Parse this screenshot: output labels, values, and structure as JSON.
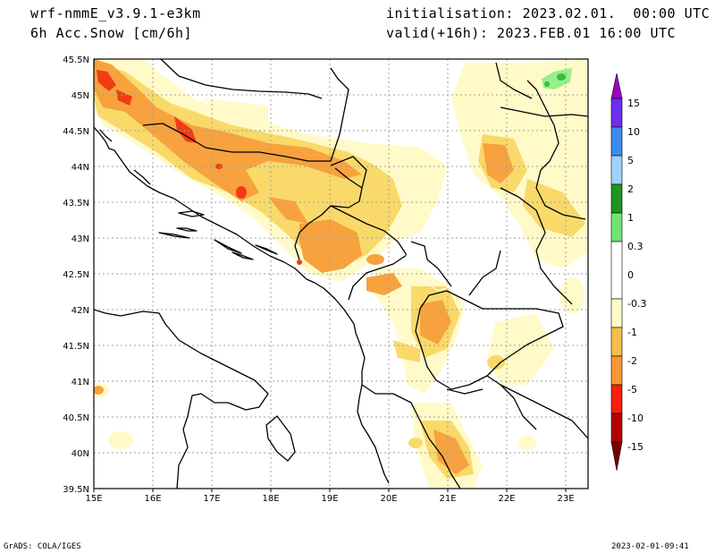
{
  "header": {
    "model": "wrf-nmmE_v3.9.1-e3km",
    "field": "6h Acc.Snow [cm/6h]",
    "init": "initialisation: 2023.02.01.  00:00 UTC",
    "valid": "valid(+16h): 2023.FEB.01 16:00 UTC"
  },
  "footer": {
    "credit": "GrADS: COLA/IGES",
    "timestamp": "2023-02-01-09:41"
  },
  "map": {
    "lon_labels": [
      "15E",
      "16E",
      "17E",
      "18E",
      "19E",
      "20E",
      "21E",
      "22E",
      "23E"
    ],
    "lat_labels": [
      "45.5N",
      "45N",
      "44.5N",
      "44N",
      "43.5N",
      "43N",
      "42.5N",
      "42N",
      "41.5N",
      "41N",
      "40.5N",
      "40N",
      "39.5N"
    ]
  },
  "colorbar": {
    "labels": [
      "15",
      "10",
      "5",
      "2",
      "1",
      "0.3",
      "0",
      "-0.3",
      "-1",
      "-2",
      "-5",
      "-10",
      "-15"
    ],
    "colors": [
      "#a000c8",
      "#6e2ef0",
      "#3c6ee6",
      "#5aa0f0",
      "#a0d2fa",
      "#1e961e",
      "#3cbe3c",
      "#96f08c",
      "#ffffff",
      "#fffac8",
      "#ffe878",
      "#f5be46",
      "#fa9632",
      "#f03c14",
      "#c80000",
      "#a00000",
      "#800000"
    ]
  }
}
